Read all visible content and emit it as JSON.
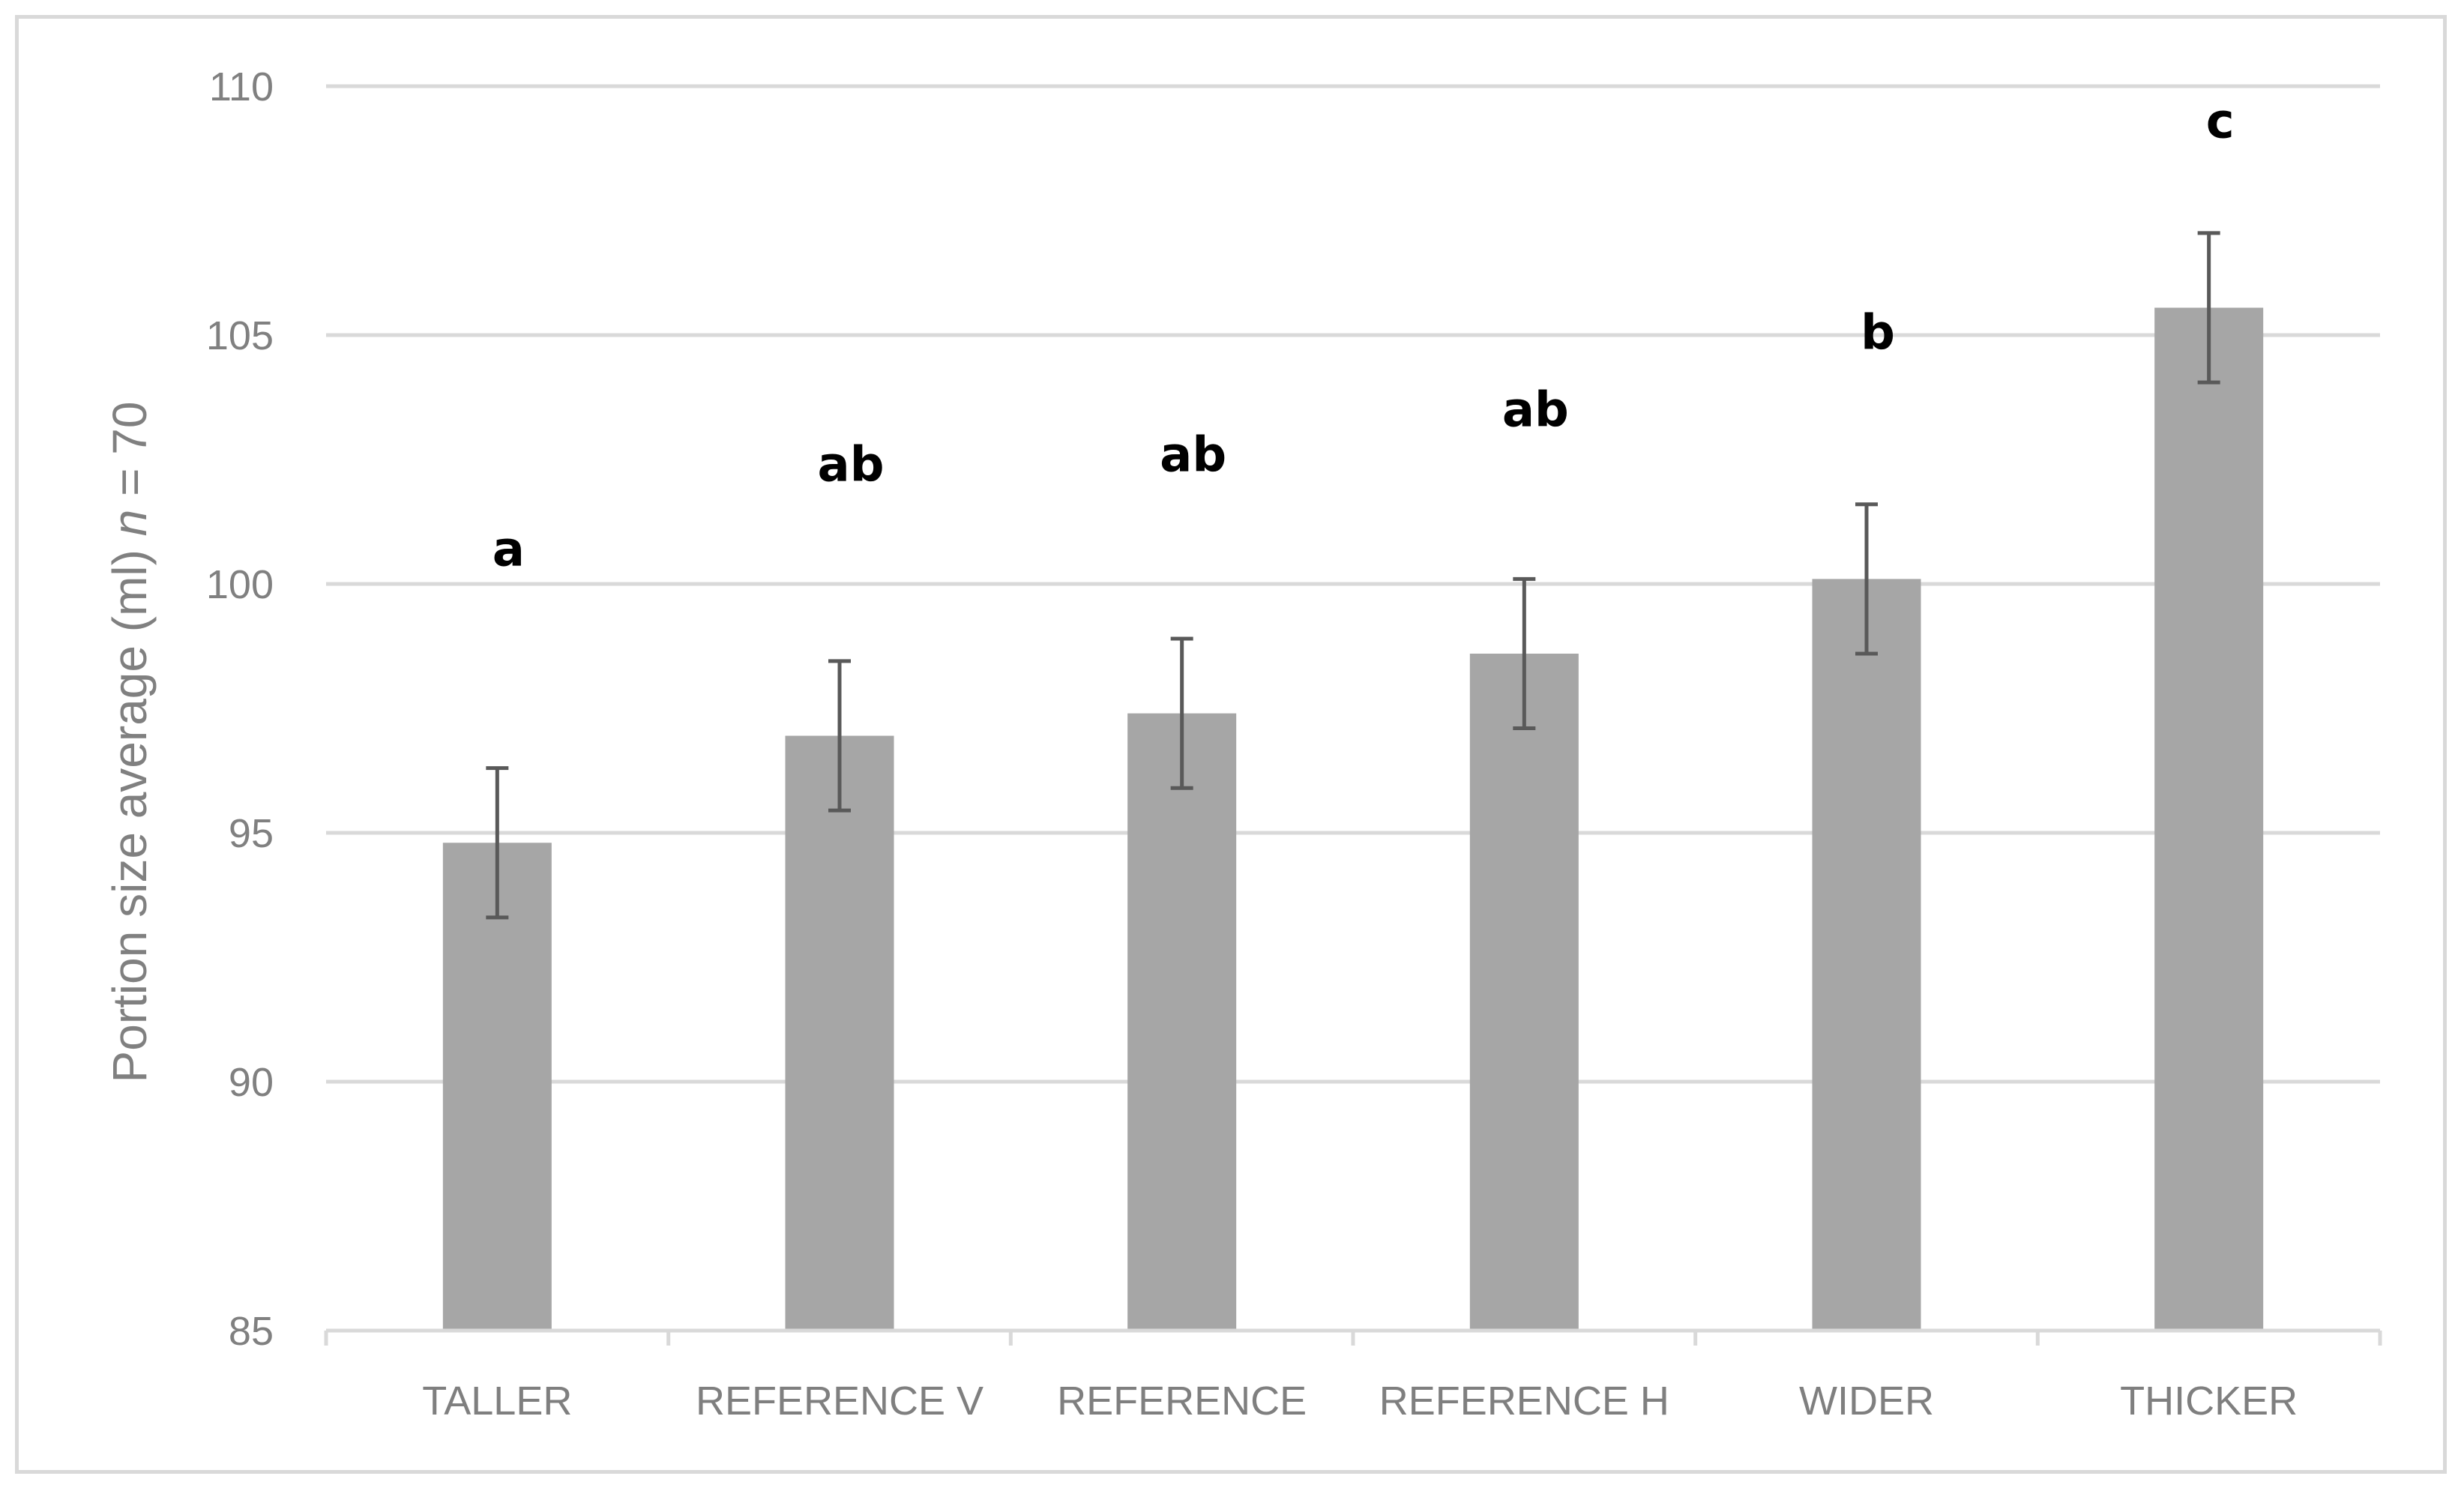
{
  "chart_data": {
    "type": "bar",
    "title": "",
    "xlabel": "",
    "ylabel": "Portion size average (ml) ",
    "ylabel_italic": "n",
    "ylabel_suffix": " = 70",
    "ylim": [
      85,
      110
    ],
    "yticks": [
      85,
      90,
      95,
      100,
      105,
      110
    ],
    "grid": true,
    "legend": "none",
    "categories": [
      "TALLER",
      "REFERENCE V",
      "REFERENCE",
      "REFERENCE H",
      "WIDER",
      "THICKER"
    ],
    "values": [
      94.8,
      96.95,
      97.4,
      98.6,
      100.1,
      105.55
    ],
    "error": [
      1.5,
      1.5,
      1.5,
      1.5,
      1.5,
      1.5
    ],
    "annotations": [
      "a",
      "ab",
      "ab",
      "ab",
      "b",
      "c"
    ],
    "annotation_values": [
      100.7,
      102.4,
      102.6,
      103.5,
      105.05,
      109.3
    ]
  },
  "colors": {
    "bar": "#a6a6a6",
    "error_bar": "#595959",
    "grid": "#d9d9d9",
    "axis": "#d9d9d9",
    "text": "#808080"
  }
}
